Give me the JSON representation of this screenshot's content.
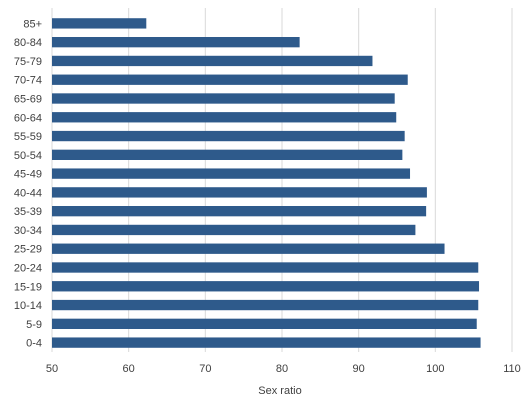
{
  "chart_data": {
    "type": "bar",
    "orientation": "horizontal",
    "categories": [
      "85+",
      "80-84",
      "75-79",
      "70-74",
      "65-69",
      "60-64",
      "55-59",
      "50-54",
      "45-49",
      "40-44",
      "35-39",
      "30-34",
      "25-29",
      "20-24",
      "15-19",
      "10-14",
      "5-9",
      "0-4"
    ],
    "values": [
      62.3,
      82.3,
      91.8,
      96.4,
      94.7,
      94.9,
      96.0,
      95.7,
      96.7,
      98.9,
      98.8,
      97.4,
      101.2,
      105.6,
      105.7,
      105.6,
      105.4,
      105.9
    ],
    "xlabel": "Sex ratio",
    "xlim": [
      50,
      110
    ],
    "xticks": [
      "50",
      "60",
      "70",
      "80",
      "90",
      "100",
      "110"
    ],
    "grid": true,
    "bar_color": "#2E5A8B"
  }
}
